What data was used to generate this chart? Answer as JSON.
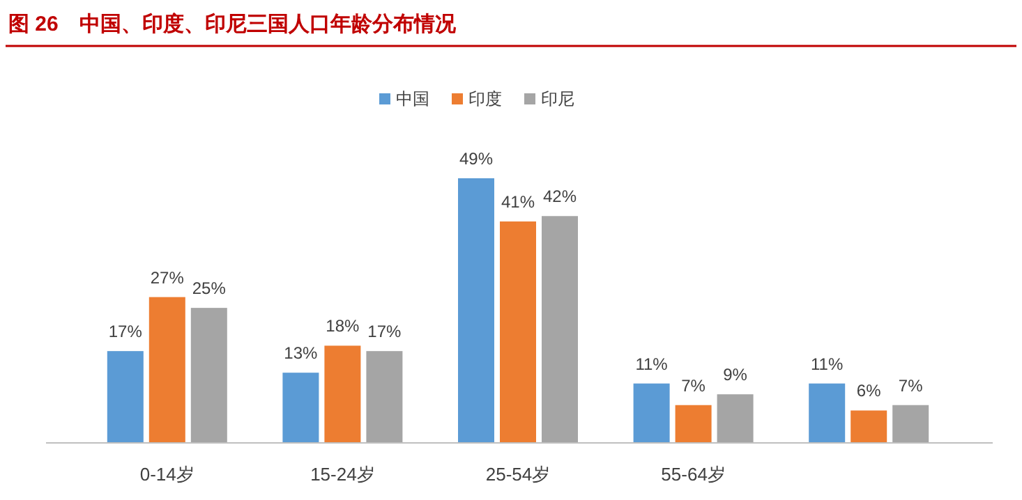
{
  "chart_data": {
    "type": "bar",
    "title": "图 26　中国、印度、印尼三国人口年龄分布情况",
    "categories": [
      "0-14岁",
      "15-24岁",
      "25-54岁",
      "55-64岁",
      null
    ],
    "legend": "top",
    "series": [
      {
        "name": "中国",
        "color": "#5b9bd5",
        "values": [
          17,
          13,
          49,
          11,
          11
        ],
        "value_labels": [
          "17%",
          "13%",
          "49%",
          "11%",
          "11%"
        ]
      },
      {
        "name": "印度",
        "color": "#ed7d31",
        "values": [
          27,
          18,
          41,
          7,
          6
        ],
        "value_labels": [
          "27%",
          "18%",
          "41%",
          "7%",
          "6%"
        ]
      },
      {
        "name": "印尼",
        "color": "#a5a5a5",
        "values": [
          25,
          17,
          42,
          9,
          7
        ],
        "value_labels": [
          "25%",
          "17%",
          "42%",
          "9%",
          "7%"
        ]
      }
    ]
  }
}
